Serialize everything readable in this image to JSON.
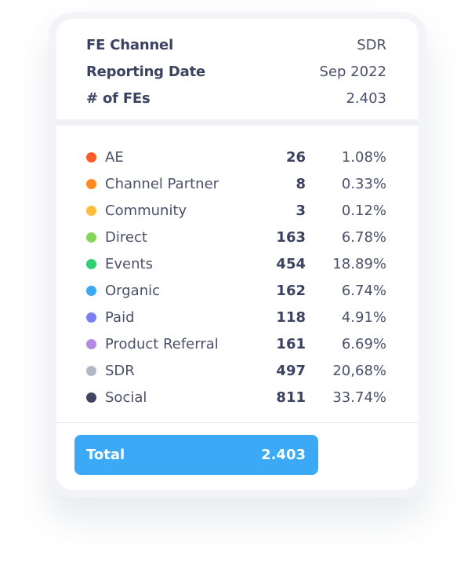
{
  "header": {
    "rows": [
      {
        "label": "FE Channel",
        "value": "SDR"
      },
      {
        "label": "Reporting Date",
        "value": "Sep 2022"
      },
      {
        "label": "# of FEs",
        "value": "2.403"
      }
    ]
  },
  "channels": [
    {
      "label": "AE",
      "count": "26",
      "pct": "1.08%",
      "color": "#ff5a2a"
    },
    {
      "label": "Channel Partner",
      "count": "8",
      "pct": "0.33%",
      "color": "#ff8a1f"
    },
    {
      "label": "Community",
      "count": "3",
      "pct": "0.12%",
      "color": "#ffbd3a"
    },
    {
      "label": "Direct",
      "count": "163",
      "pct": "6.78%",
      "color": "#86d45a"
    },
    {
      "label": "Events",
      "count": "454",
      "pct": "18.89%",
      "color": "#2fcf72"
    },
    {
      "label": "Organic",
      "count": "162",
      "pct": "6.74%",
      "color": "#3aa8f3"
    },
    {
      "label": "Paid",
      "count": "118",
      "pct": "4.91%",
      "color": "#7a80f2"
    },
    {
      "label": "Product Referral",
      "count": "161",
      "pct": "6.69%",
      "color": "#b48be4"
    },
    {
      "label": "SDR",
      "count": "497",
      "pct": "20,68%",
      "color": "#b3b7c6"
    },
    {
      "label": "Social",
      "count": "811",
      "pct": "33.74%",
      "color": "#3f4563"
    }
  ],
  "total": {
    "label": "Total",
    "value": "2.403",
    "color": "#3ba9f5"
  }
}
